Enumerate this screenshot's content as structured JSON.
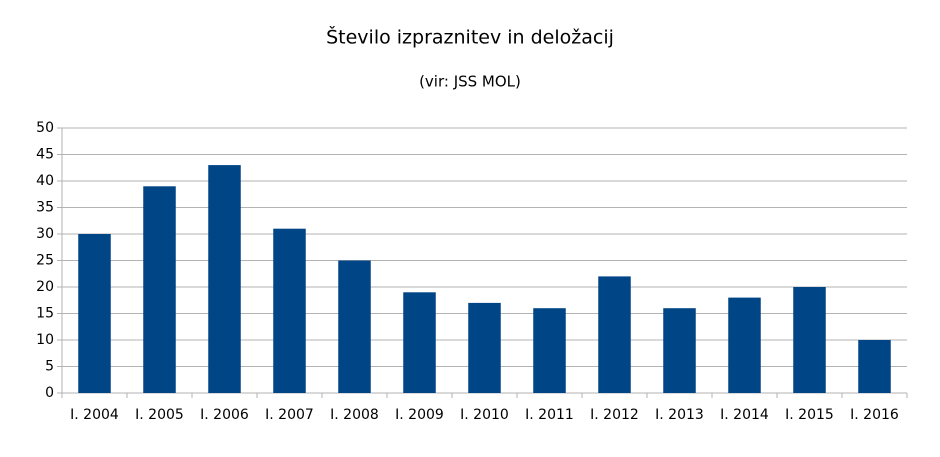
{
  "chart_data": {
    "type": "bar",
    "title": "Število izpraznitev in deložacij",
    "subtitle": "(vir: JSS MOL)",
    "categories": [
      "I. 2004",
      "I. 2005",
      "I. 2006",
      "I. 2007",
      "I. 2008",
      "I. 2009",
      "I. 2010",
      "I. 2011",
      "I. 2012",
      "I. 2013",
      "I. 2014",
      "I. 2015",
      "I. 2016"
    ],
    "values": [
      30,
      39,
      43,
      31,
      25,
      19,
      17,
      16,
      22,
      16,
      18,
      20,
      10
    ],
    "color": "#004586",
    "ylim": [
      0,
      50
    ],
    "yticks": [
      0,
      5,
      10,
      15,
      20,
      25,
      30,
      35,
      40,
      45,
      50
    ],
    "grid": true
  }
}
